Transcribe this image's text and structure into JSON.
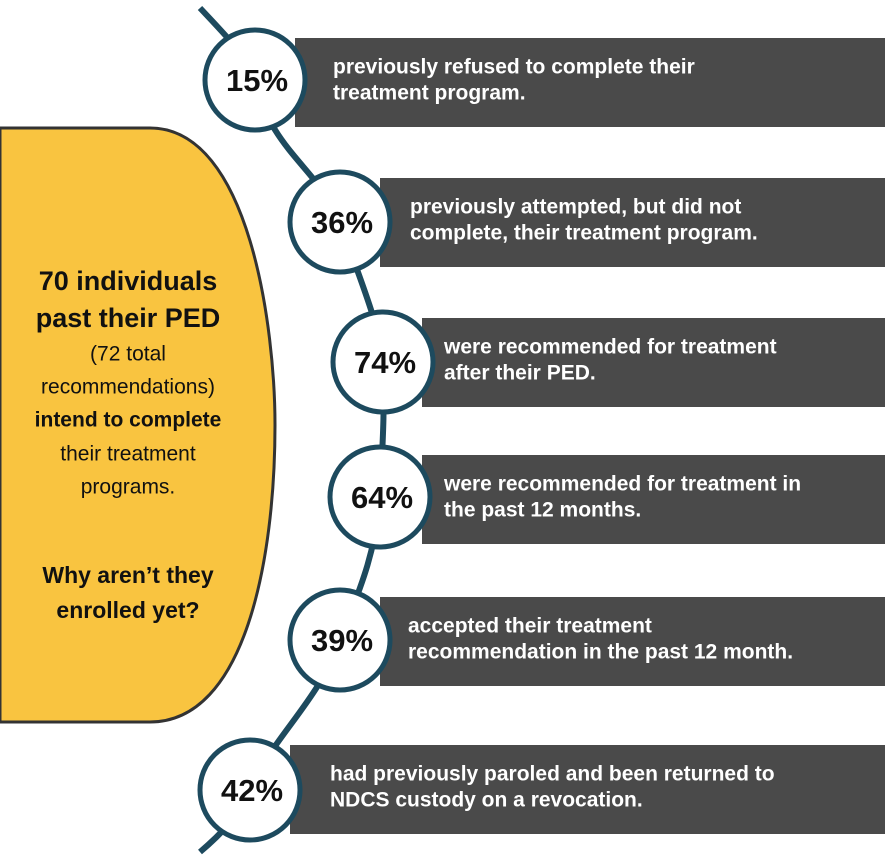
{
  "left_panel": {
    "lines": [
      {
        "text": "70 individuals",
        "style": "big"
      },
      {
        "text": "past their PED",
        "style": "big"
      },
      {
        "text": "(72 total",
        "style": "normal"
      },
      {
        "text": "recommendations)",
        "style": "normal"
      },
      {
        "text": "intend to complete",
        "style": "bold"
      },
      {
        "text": "their treatment",
        "style": "normal"
      },
      {
        "text": "programs.",
        "style": "normal"
      },
      {
        "text": "Why aren’t they",
        "style": "question"
      },
      {
        "text": "enrolled yet?",
        "style": "question"
      }
    ]
  },
  "items": [
    {
      "percent": "15%",
      "lines": [
        "previously refused to complete their",
        "treatment program."
      ]
    },
    {
      "percent": "36%",
      "lines": [
        "previously attempted, but did not",
        "complete, their treatment program."
      ]
    },
    {
      "percent": "74%",
      "lines": [
        "were recommended for treatment",
        "after their PED."
      ]
    },
    {
      "percent": "64%",
      "lines": [
        "were recommended for treatment in",
        "the past 12 months."
      ]
    },
    {
      "percent": "39%",
      "lines": [
        "accepted their treatment",
        "recommendation in the past 12 month."
      ]
    },
    {
      "percent": "42%",
      "lines": [
        "had previously paroled and been returned to",
        "NDCS custody on a revocation."
      ]
    }
  ]
}
